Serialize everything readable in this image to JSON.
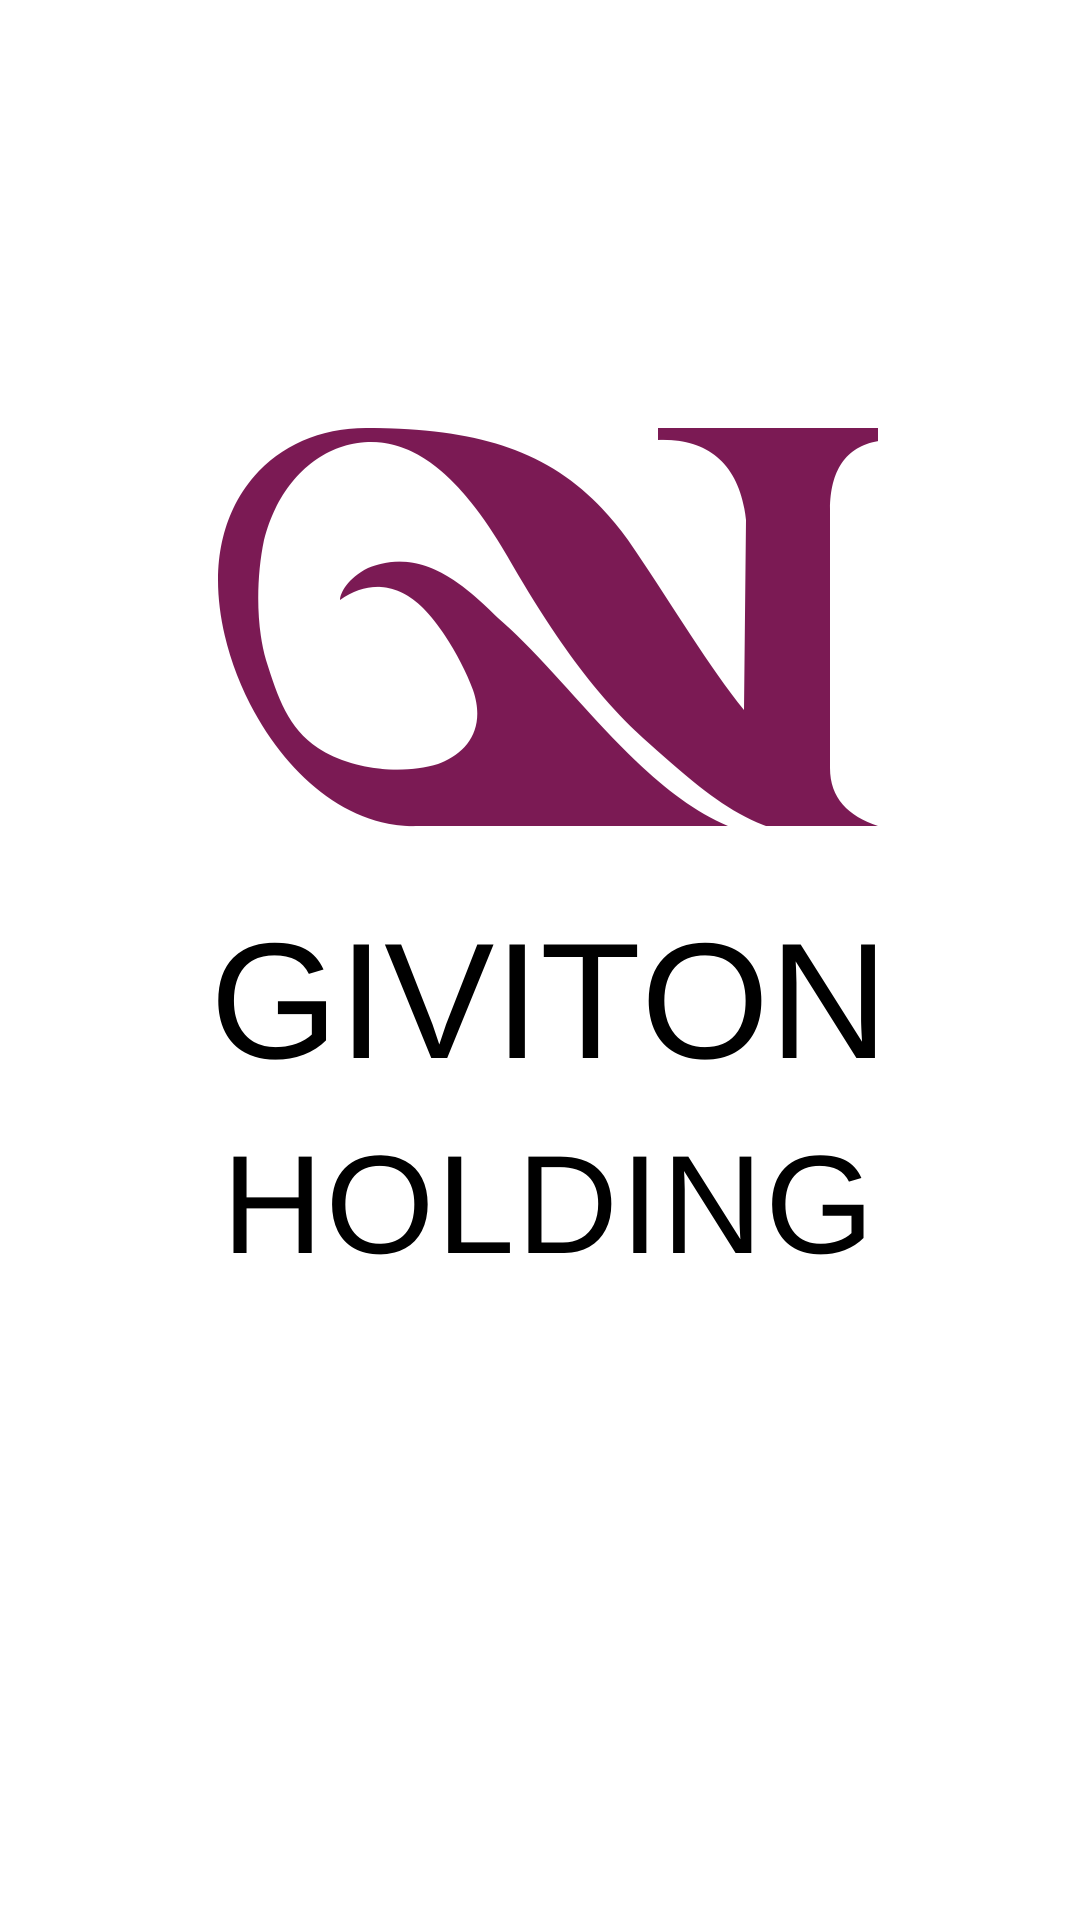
{
  "brand": {
    "name_line1": "GIVITON",
    "name_line2": "HOLDING",
    "logo_icon": "monogram-gn-logo-icon",
    "logo_color": "#7b1a54",
    "text_color": "#000000",
    "background": "#ffffff"
  }
}
